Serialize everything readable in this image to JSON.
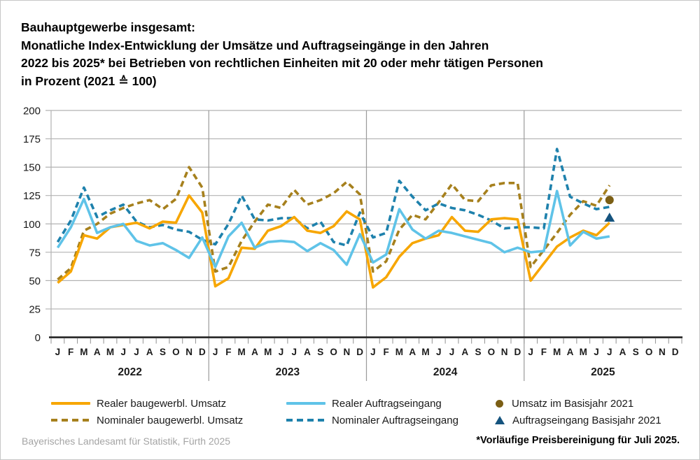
{
  "title": {
    "lines": [
      "Bauhauptgewerbe insgesamt:",
      "Monatliche Index-Entwicklung der Umsätze und Auftragseingänge in den Jahren",
      "2022 bis 2025* bei Betrieben von rechtlichen Einheiten mit 20 oder mehr tätigen Personen",
      "in Prozent (2021 ≙ 100)"
    ]
  },
  "footer": {
    "source": "Bayerisches Landesamt für Statistik, Fürth 2025",
    "note": "*Vorläufige Preisbereinigung für Juli 2025."
  },
  "colors": {
    "real_umsatz": "#F7A600",
    "nominal_umsatz": "#A6801D",
    "real_auftragseingang": "#5FC3E8",
    "nominal_auftragseingang": "#1E81AC",
    "marker_umsatz_basisjahr": "#7B5E14",
    "marker_auftragseingang_basisjahr": "#15537E",
    "grid": "#b2b2b2",
    "axis": "#1a1a1a",
    "separator": "#9a9a9a"
  },
  "legend": {
    "items": [
      {
        "id": "real-umsatz",
        "swatch": "line",
        "color": "#F7A600",
        "label": "Realer baugewerbl. Umsatz"
      },
      {
        "id": "nominal-umsatz",
        "swatch": "dash",
        "color": "#A6801D",
        "label": "Nominaler baugewerbl. Umsatz"
      },
      {
        "id": "real-auftragseingang",
        "swatch": "line",
        "color": "#5FC3E8",
        "label": "Realer Auftragseingang"
      },
      {
        "id": "nominal-auftragseingang",
        "swatch": "dash",
        "color": "#1E81AC",
        "label": "Nominaler Auftragseingang"
      },
      {
        "id": "umsatz-basisjahr",
        "swatch": "dot",
        "color": "#7B5E14",
        "label": "Umsatz im Basisjahr 2021"
      },
      {
        "id": "auftragseingang-basisjahr",
        "swatch": "triangle",
        "color": "#15537E",
        "label": "Auftragseingang Basisjahr 2021"
      }
    ]
  },
  "chart_data": {
    "type": "line",
    "title": "Monatliche Index-Entwicklung der Umsätze und Auftragseingänge 2022 bis 2025, Bauhauptgewerbe insgesamt",
    "ylabel": "in Prozent (2021 ≙ 100)",
    "xlabel": "",
    "ylim": [
      0,
      200
    ],
    "yticks": [
      0,
      25,
      50,
      75,
      100,
      125,
      150,
      175,
      200
    ],
    "grid": true,
    "legend_position": "bottom",
    "years": [
      "2022",
      "2023",
      "2024",
      "2025"
    ],
    "month_letters": [
      "J",
      "F",
      "M",
      "A",
      "M",
      "J",
      "J",
      "A",
      "S",
      "O",
      "N",
      "D"
    ],
    "months_total": 48,
    "series": [
      {
        "name": "Nominaler baugewerbl. Umsatz",
        "style": "dashed",
        "color": "#A6801D",
        "values": [
          51,
          61,
          94,
          100,
          109,
          114,
          118,
          121,
          113,
          122,
          150,
          132,
          58,
          62,
          85,
          102,
          117,
          114,
          130,
          117,
          121,
          127,
          137,
          126,
          58,
          67,
          95,
          108,
          104,
          119,
          135,
          121,
          120,
          134,
          136,
          136,
          62,
          77,
          92,
          108,
          120,
          116,
          134
        ]
      },
      {
        "name": "Nominaler Auftragseingang",
        "style": "dashed",
        "color": "#1E81AC",
        "values": [
          84,
          103,
          132,
          106,
          112,
          117,
          102,
          97,
          99,
          95,
          93,
          86,
          82,
          100,
          125,
          104,
          103,
          105,
          105,
          96,
          102,
          84,
          81,
          110,
          88,
          92,
          138,
          124,
          112,
          118,
          114,
          112,
          108,
          103,
          96,
          97,
          97,
          96,
          166,
          124,
          118,
          113,
          115
        ]
      },
      {
        "name": "Realer baugewerbl. Umsatz",
        "style": "solid",
        "color": "#F7A600",
        "values": [
          48,
          58,
          90,
          87,
          97,
          99,
          101,
          96,
          102,
          101,
          125,
          110,
          45,
          52,
          79,
          78,
          94,
          98,
          106,
          94,
          92,
          98,
          111,
          104,
          44,
          53,
          71,
          83,
          87,
          90,
          106,
          94,
          93,
          104,
          105,
          104,
          50,
          65,
          80,
          88,
          94,
          90,
          101
        ]
      },
      {
        "name": "Realer Auftragseingang",
        "style": "solid",
        "color": "#5FC3E8",
        "values": [
          79,
          97,
          122,
          92,
          97,
          100,
          85,
          81,
          83,
          77,
          70,
          88,
          62,
          89,
          101,
          79,
          84,
          85,
          84,
          76,
          83,
          77,
          64,
          91,
          66,
          73,
          113,
          95,
          87,
          94,
          92,
          89,
          86,
          83,
          75,
          79,
          75,
          76,
          129,
          81,
          93,
          87,
          89
        ]
      }
    ],
    "point_markers": [
      {
        "name": "Umsatz im Basisjahr 2021",
        "shape": "circle",
        "color": "#7B5E14",
        "month_index": 42,
        "value": 121
      },
      {
        "name": "Auftragseingang Basisjahr 2021",
        "shape": "triangle",
        "color": "#15537E",
        "month_index": 42,
        "value": 105
      }
    ]
  }
}
